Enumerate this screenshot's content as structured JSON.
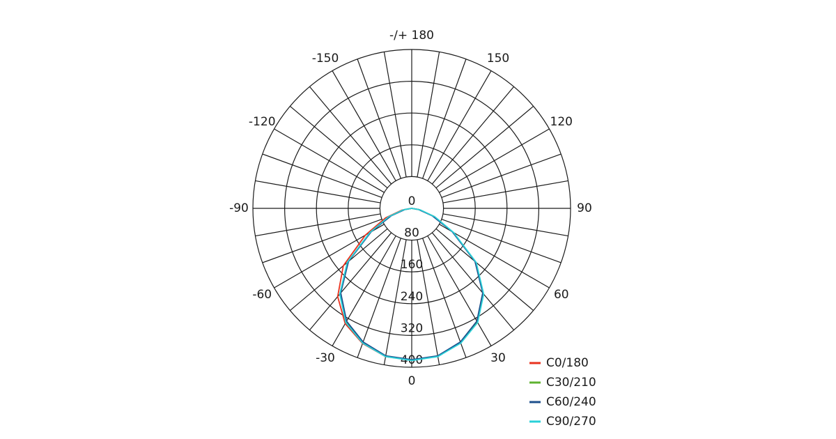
{
  "chart_data": {
    "type": "polar",
    "x": [
      -90,
      -80,
      -70,
      -60,
      -50,
      -40,
      -30,
      -20,
      -10,
      0,
      10,
      20,
      30,
      40,
      50,
      60,
      70,
      80,
      90
    ],
    "series": [
      {
        "name": "C0/180",
        "color": "#e8321e",
        "values": [
          0,
          25,
          70,
          135,
          225,
          290,
          335,
          362,
          379,
          382,
          378,
          360,
          330,
          280,
          210,
          120,
          60,
          20,
          0
        ]
      },
      {
        "name": "C30/210",
        "color": "#5fb330",
        "values": [
          0,
          20,
          60,
          120,
          210,
          280,
          330,
          360,
          378,
          382,
          378,
          360,
          330,
          280,
          210,
          120,
          60,
          20,
          0
        ]
      },
      {
        "name": "C60/240",
        "color": "#1d4f8c",
        "values": [
          0,
          18,
          55,
          118,
          208,
          278,
          328,
          358,
          377,
          381,
          377,
          358,
          328,
          278,
          208,
          118,
          55,
          18,
          0
        ]
      },
      {
        "name": "C90/270",
        "color": "#2ad0d8",
        "values": [
          0,
          22,
          62,
          122,
          212,
          282,
          332,
          361,
          379,
          383,
          379,
          361,
          332,
          282,
          212,
          122,
          62,
          22,
          0
        ]
      }
    ],
    "rlim": [
      0,
      400
    ],
    "rticks": [
      0,
      80,
      160,
      240,
      320,
      400
    ],
    "xticks": [
      0,
      30,
      60,
      90,
      120,
      150,
      {
        "value": 180,
        "label": "-/+ 180"
      },
      -150,
      -120,
      -90,
      -60,
      -30
    ],
    "grid": true
  }
}
